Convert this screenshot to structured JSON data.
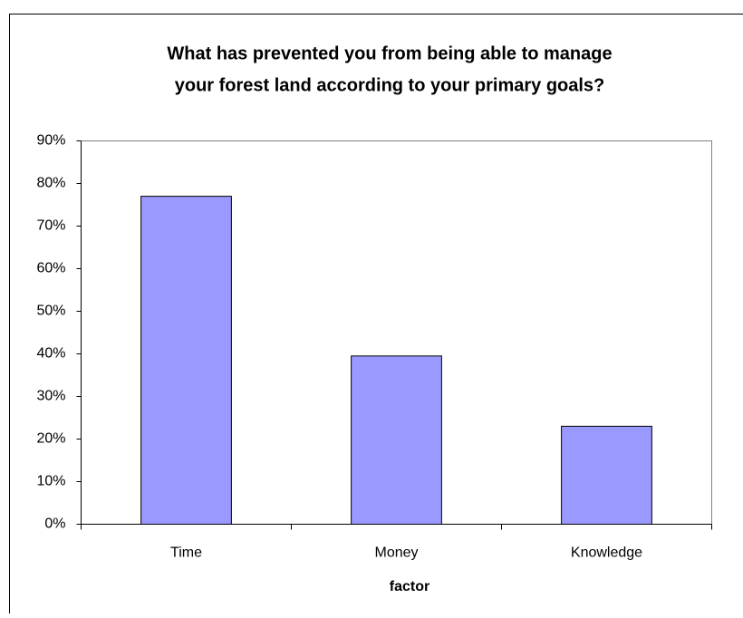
{
  "chart_data": {
    "type": "bar",
    "title": [
      "What has prevented you from being able to manage",
      "your forest land according to your primary goals?"
    ],
    "x_label": "factor",
    "categories": [
      "Time",
      "Money",
      "Knowledge"
    ],
    "values": [
      77,
      39.5,
      23
    ],
    "color": "#9999ff",
    "ylim": [
      0,
      90
    ],
    "yticks": [
      {
        "value": 0,
        "label": "0%"
      },
      {
        "value": 10,
        "label": "10%"
      },
      {
        "value": 20,
        "label": "20%"
      },
      {
        "value": 30,
        "label": "30%"
      },
      {
        "value": 40,
        "label": "40%"
      },
      {
        "value": 50,
        "label": "50%"
      },
      {
        "value": 60,
        "label": "60%"
      },
      {
        "value": 70,
        "label": "70%"
      },
      {
        "value": 80,
        "label": "80%"
      },
      {
        "value": 90,
        "label": "90%"
      }
    ],
    "grid": false
  }
}
